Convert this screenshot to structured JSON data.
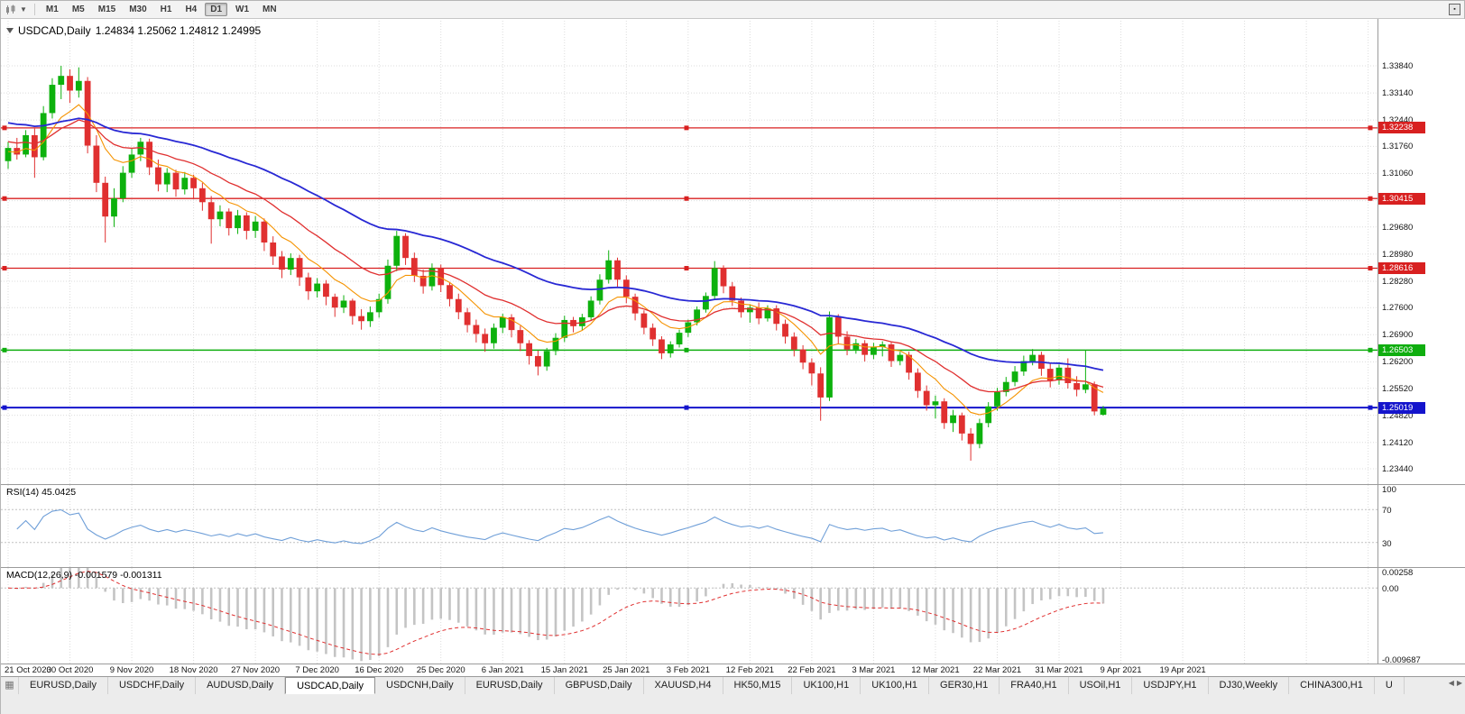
{
  "toolbar": {
    "timeframes": [
      "M1",
      "M5",
      "M15",
      "M30",
      "H1",
      "H4",
      "D1",
      "W1",
      "MN"
    ],
    "active_timeframe": "D1"
  },
  "chart": {
    "title_symbol": "USDCAD,Daily",
    "title_ohlc": "1.24834 1.25062 1.24812 1.24995",
    "price_axis": [
      "1.33840",
      "1.33140",
      "1.32440",
      "1.31760",
      "1.31060",
      "1.30360",
      "1.29680",
      "1.28980",
      "1.28280",
      "1.27600",
      "1.26900",
      "1.26200",
      "1.25520",
      "1.24820",
      "1.24120",
      "1.23440"
    ],
    "date_axis": [
      "21 Oct 2020",
      "30 Oct 2020",
      "9 Nov 2020",
      "18 Nov 2020",
      "27 Nov 2020",
      "7 Dec 2020",
      "16 Dec 2020",
      "25 Dec 2020",
      "6 Jan 2021",
      "15 Jan 2021",
      "25 Jan 2021",
      "3 Feb 2021",
      "12 Feb 2021",
      "22 Feb 2021",
      "3 Mar 2021",
      "12 Mar 2021",
      "22 Mar 2021",
      "31 Mar 2021",
      "9 Apr 2021",
      "19 Apr 2021"
    ],
    "levels": [
      {
        "label": "1.32238",
        "price": 1.32238,
        "color": "#d82020",
        "width": 1.3
      },
      {
        "label": "1.30415",
        "price": 1.30415,
        "color": "#d82020",
        "width": 1.3
      },
      {
        "label": "1.28616",
        "price": 1.28616,
        "color": "#d82020",
        "width": 1.3
      },
      {
        "label": "1.26503",
        "price": 1.26503,
        "color": "#0fae0f",
        "width": 1.5
      },
      {
        "label": "1.25019",
        "price": 1.25019,
        "color": "#1414cc",
        "width": 2
      }
    ]
  },
  "chart_data": {
    "type": "candlestick",
    "symbol": "USDCAD",
    "timeframe": "Daily",
    "last_ohlc": {
      "open": 1.24834,
      "high": 1.25062,
      "low": 1.24812,
      "close": 1.24995
    },
    "y_range": [
      1.2304,
      1.35
    ],
    "colors": {
      "up": "#0db10d",
      "down": "#e03030"
    },
    "moving_averages": [
      {
        "name": "ma-fast",
        "period": 8,
        "seed": 1.316,
        "color": "#f59300",
        "width": 1.1
      },
      {
        "name": "ma-medium",
        "period": 18,
        "seed": 1.319,
        "color": "#e03030",
        "width": 1.3
      },
      {
        "name": "ma-slow",
        "period": 42,
        "seed": 1.324,
        "color": "#2828d4",
        "width": 1.8
      }
    ],
    "candles": [
      [
        1.3138,
        1.3188,
        1.3118,
        1.3172
      ],
      [
        1.3172,
        1.3198,
        1.3142,
        1.3155
      ],
      [
        1.3155,
        1.3218,
        1.3148,
        1.3205
      ],
      [
        1.3205,
        1.3222,
        1.3095,
        1.3148
      ],
      [
        1.3148,
        1.328,
        1.314,
        1.3262
      ],
      [
        1.3262,
        1.3352,
        1.3248,
        1.3335
      ],
      [
        1.3335,
        1.3384,
        1.3298,
        1.3358
      ],
      [
        1.3358,
        1.3375,
        1.3288,
        1.332
      ],
      [
        1.332,
        1.338,
        1.3302,
        1.3345
      ],
      [
        1.3345,
        1.3355,
        1.3158,
        1.3178
      ],
      [
        1.3178,
        1.3205,
        1.3058,
        1.3082
      ],
      [
        1.3082,
        1.3098,
        1.2928,
        1.2995
      ],
      [
        1.2995,
        1.3068,
        1.2968,
        1.3042
      ],
      [
        1.3042,
        1.3125,
        1.3032,
        1.3108
      ],
      [
        1.3108,
        1.3172,
        1.3095,
        1.3155
      ],
      [
        1.3155,
        1.3198,
        1.3138,
        1.3188
      ],
      [
        1.3188,
        1.3196,
        1.3102,
        1.3122
      ],
      [
        1.3122,
        1.3142,
        1.306,
        1.3078
      ],
      [
        1.3078,
        1.312,
        1.3058,
        1.3108
      ],
      [
        1.3108,
        1.3116,
        1.3046,
        1.3065
      ],
      [
        1.3065,
        1.311,
        1.3052,
        1.3095
      ],
      [
        1.3095,
        1.3103,
        1.3042,
        1.3068
      ],
      [
        1.3068,
        1.3082,
        1.301,
        1.3032
      ],
      [
        1.3032,
        1.3048,
        1.2925,
        1.2988
      ],
      [
        1.2988,
        1.3024,
        1.297,
        1.3008
      ],
      [
        1.3008,
        1.3016,
        1.2946,
        1.2965
      ],
      [
        1.2965,
        1.3012,
        1.295,
        1.2998
      ],
      [
        1.2998,
        1.3006,
        1.2936,
        1.2958
      ],
      [
        1.2958,
        1.2996,
        1.294,
        1.2982
      ],
      [
        1.2982,
        1.299,
        1.2906,
        1.2928
      ],
      [
        1.2928,
        1.2944,
        1.287,
        1.2892
      ],
      [
        1.2892,
        1.2906,
        1.2836,
        1.2858
      ],
      [
        1.2858,
        1.29,
        1.2844,
        1.2888
      ],
      [
        1.2888,
        1.2896,
        1.2816,
        1.2838
      ],
      [
        1.2838,
        1.285,
        1.278,
        1.2802
      ],
      [
        1.2802,
        1.2836,
        1.2786,
        1.2822
      ],
      [
        1.2822,
        1.2831,
        1.2766,
        1.2788
      ],
      [
        1.2788,
        1.2796,
        1.2736,
        1.276
      ],
      [
        1.276,
        1.2792,
        1.2746,
        1.2778
      ],
      [
        1.2778,
        1.2783,
        1.2716,
        1.2738
      ],
      [
        1.2738,
        1.2756,
        1.2703,
        1.2725
      ],
      [
        1.2725,
        1.2763,
        1.271,
        1.2748
      ],
      [
        1.2748,
        1.2796,
        1.2734,
        1.2782
      ],
      [
        1.2782,
        1.2884,
        1.277,
        1.2868
      ],
      [
        1.2868,
        1.2958,
        1.2854,
        1.2945
      ],
      [
        1.2945,
        1.2952,
        1.287,
        1.2888
      ],
      [
        1.2888,
        1.2902,
        1.2826,
        1.2842
      ],
      [
        1.2842,
        1.2858,
        1.2796,
        1.2815
      ],
      [
        1.2815,
        1.2874,
        1.2804,
        1.2862
      ],
      [
        1.2862,
        1.2871,
        1.28,
        1.2818
      ],
      [
        1.2818,
        1.2826,
        1.2763,
        1.2782
      ],
      [
        1.2782,
        1.2796,
        1.273,
        1.2748
      ],
      [
        1.2748,
        1.2759,
        1.2696,
        1.2715
      ],
      [
        1.2715,
        1.2729,
        1.267,
        1.2692
      ],
      [
        1.2692,
        1.2706,
        1.2646,
        1.2668
      ],
      [
        1.2668,
        1.2719,
        1.2654,
        1.2708
      ],
      [
        1.2708,
        1.2744,
        1.2694,
        1.2735
      ],
      [
        1.2735,
        1.2743,
        1.2683,
        1.2702
      ],
      [
        1.2702,
        1.2713,
        1.2648,
        1.2668
      ],
      [
        1.2668,
        1.2676,
        1.2613,
        1.2635
      ],
      [
        1.2635,
        1.2649,
        1.2585,
        1.2608
      ],
      [
        1.2608,
        1.2656,
        1.2597,
        1.2648
      ],
      [
        1.2648,
        1.2694,
        1.2637,
        1.2682
      ],
      [
        1.2682,
        1.2739,
        1.2671,
        1.2728
      ],
      [
        1.2728,
        1.2736,
        1.2696,
        1.2712
      ],
      [
        1.2712,
        1.2744,
        1.2701,
        1.2735
      ],
      [
        1.2735,
        1.2789,
        1.2726,
        1.2778
      ],
      [
        1.2778,
        1.2846,
        1.2768,
        1.2832
      ],
      [
        1.2832,
        1.2908,
        1.2822,
        1.2882
      ],
      [
        1.2882,
        1.2889,
        1.2814,
        1.2832
      ],
      [
        1.2832,
        1.2843,
        1.2771,
        1.2788
      ],
      [
        1.2788,
        1.2796,
        1.2727,
        1.2745
      ],
      [
        1.2745,
        1.2753,
        1.2691,
        1.2708
      ],
      [
        1.2708,
        1.2719,
        1.2661,
        1.2678
      ],
      [
        1.2678,
        1.2686,
        1.2627,
        1.2642
      ],
      [
        1.2642,
        1.2673,
        1.2631,
        1.2665
      ],
      [
        1.2665,
        1.2703,
        1.2657,
        1.2695
      ],
      [
        1.2695,
        1.2729,
        1.2684,
        1.2722
      ],
      [
        1.2722,
        1.2763,
        1.2714,
        1.2755
      ],
      [
        1.2755,
        1.2799,
        1.2747,
        1.279
      ],
      [
        1.279,
        1.288,
        1.2781,
        1.2862
      ],
      [
        1.2862,
        1.2869,
        1.2797,
        1.2815
      ],
      [
        1.2815,
        1.2826,
        1.2764,
        1.2778
      ],
      [
        1.2778,
        1.2786,
        1.2734,
        1.2748
      ],
      [
        1.2748,
        1.2769,
        1.2721,
        1.276
      ],
      [
        1.276,
        1.2773,
        1.2717,
        1.2732
      ],
      [
        1.2732,
        1.2766,
        1.2724,
        1.2758
      ],
      [
        1.2758,
        1.2766,
        1.2701,
        1.2718
      ],
      [
        1.2718,
        1.2729,
        1.2667,
        1.2685
      ],
      [
        1.2685,
        1.2696,
        1.2634,
        1.2652
      ],
      [
        1.2652,
        1.2663,
        1.2601,
        1.2618
      ],
      [
        1.2618,
        1.2629,
        1.2559,
        1.259
      ],
      [
        1.259,
        1.2606,
        1.2468,
        1.2528
      ],
      [
        1.2528,
        1.275,
        1.2519,
        1.2735
      ],
      [
        1.2735,
        1.2743,
        1.2667,
        1.2685
      ],
      [
        1.2685,
        1.2699,
        1.2637,
        1.2652
      ],
      [
        1.2652,
        1.2679,
        1.2641,
        1.2668
      ],
      [
        1.2668,
        1.2676,
        1.2621,
        1.2638
      ],
      [
        1.2638,
        1.2669,
        1.2627,
        1.2658
      ],
      [
        1.2658,
        1.2673,
        1.2634,
        1.2665
      ],
      [
        1.2665,
        1.2671,
        1.2607,
        1.2622
      ],
      [
        1.2622,
        1.2646,
        1.2611,
        1.2638
      ],
      [
        1.2638,
        1.2646,
        1.2574,
        1.2592
      ],
      [
        1.2592,
        1.2603,
        1.2527,
        1.2545
      ],
      [
        1.2545,
        1.2559,
        1.2494,
        1.2508
      ],
      [
        1.2508,
        1.2533,
        1.2474,
        1.2518
      ],
      [
        1.2518,
        1.2526,
        1.2447,
        1.2462
      ],
      [
        1.2462,
        1.2496,
        1.2439,
        1.2482
      ],
      [
        1.2482,
        1.2489,
        1.2417,
        1.2435
      ],
      [
        1.2435,
        1.2449,
        1.2365,
        1.2408
      ],
      [
        1.2408,
        1.2473,
        1.2397,
        1.2462
      ],
      [
        1.2462,
        1.2516,
        1.2451,
        1.2505
      ],
      [
        1.2505,
        1.2553,
        1.2494,
        1.2542
      ],
      [
        1.2542,
        1.2581,
        1.2531,
        1.2568
      ],
      [
        1.2568,
        1.2609,
        1.2557,
        1.2595
      ],
      [
        1.2595,
        1.2636,
        1.2584,
        1.2622
      ],
      [
        1.2622,
        1.2653,
        1.2611,
        1.2638
      ],
      [
        1.2638,
        1.2646,
        1.2584,
        1.2602
      ],
      [
        1.2602,
        1.2616,
        1.2554,
        1.2572
      ],
      [
        1.2572,
        1.2613,
        1.2561,
        1.2605
      ],
      [
        1.2605,
        1.2629,
        1.2551,
        1.2565
      ],
      [
        1.2565,
        1.2583,
        1.2531,
        1.2548
      ],
      [
        1.2548,
        1.265,
        1.2539,
        1.2562
      ],
      [
        1.2562,
        1.2569,
        1.2482,
        1.2492
      ],
      [
        1.24834,
        1.25062,
        1.24812,
        1.24995
      ]
    ]
  },
  "rsi_panel": {
    "label": "RSI(14) 45.0425",
    "value": 45.0425,
    "period": 14,
    "color": "#6f9fd8",
    "axis": [
      {
        "label": "100",
        "value": 100
      },
      {
        "label": "70",
        "value": 70
      },
      {
        "label": "30",
        "value": 30
      }
    ],
    "guide_levels": [
      70,
      30
    ]
  },
  "macd_panel": {
    "label": "MACD(12,26,9) -0.001579 -0.001311",
    "macd_value": -0.001579,
    "signal_value": -0.001311,
    "params": [
      12,
      26,
      9
    ],
    "histogram_color": "#c4c4c4",
    "signal_color": "#e03030",
    "axis": [
      {
        "label": "0.00258",
        "value": 0.00258
      },
      {
        "label": "0.00",
        "value": 0
      },
      {
        "label": "-0.009687",
        "value": -0.009687
      }
    ],
    "range": [
      -0.009687,
      0.00258
    ]
  },
  "tabs": {
    "active_index": 3,
    "items": [
      "EURUSD,Daily",
      "USDCHF,Daily",
      "AUDUSD,Daily",
      "USDCAD,Daily",
      "USDCNH,Daily",
      "EURUSD,Daily",
      "GBPUSD,Daily",
      "XAUUSD,H4",
      "HK50,M15",
      "UK100,H1",
      "UK100,H1",
      "GER30,H1",
      "FRA40,H1",
      "USOil,H1",
      "USDJPY,H1",
      "DJ30,Weekly",
      "CHINA300,H1",
      "U"
    ]
  }
}
